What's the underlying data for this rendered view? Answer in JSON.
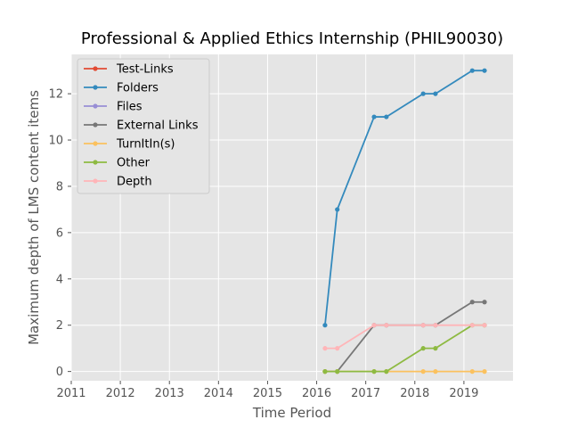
{
  "chart_data": {
    "type": "line",
    "title": "Professional & Applied Ethics Internship (PHIL90030)",
    "xlabel": "Time Period",
    "ylabel": "Maximum depth of LMS content items",
    "xlim": [
      2011,
      2020
    ],
    "ylim": [
      -0.4,
      13.7
    ],
    "x_ticks": [
      "2011",
      "2012",
      "2013",
      "2014",
      "2015",
      "2016",
      "2017",
      "2018",
      "2019"
    ],
    "y_ticks": [
      "0",
      "2",
      "4",
      "6",
      "8",
      "10",
      "12"
    ],
    "grid": true,
    "legend_position": "top-left",
    "x": [
      2016.17,
      2016.42,
      2017.17,
      2017.42,
      2018.17,
      2018.42,
      2019.17,
      2019.42
    ],
    "series": [
      {
        "name": "Test-Links",
        "color": "#E24A33",
        "values": [
          null,
          null,
          null,
          null,
          null,
          null,
          null,
          null
        ]
      },
      {
        "name": "Folders",
        "color": "#348ABD",
        "values": [
          2,
          7,
          11,
          11,
          12,
          12,
          13,
          13
        ]
      },
      {
        "name": "Files",
        "color": "#988ED5",
        "values": [
          null,
          null,
          null,
          null,
          null,
          null,
          null,
          null
        ]
      },
      {
        "name": "External Links",
        "color": "#777777",
        "values": [
          0,
          0,
          2,
          2,
          2,
          2,
          3,
          3
        ]
      },
      {
        "name": "TurnItIn(s)",
        "color": "#FBC15E",
        "values": [
          0,
          0,
          0,
          0,
          0,
          0,
          0,
          0
        ]
      },
      {
        "name": "Other",
        "color": "#8EBA42",
        "values": [
          0,
          0,
          0,
          0,
          1,
          1,
          2,
          2
        ]
      },
      {
        "name": "Depth",
        "color": "#FFB5B8",
        "values": [
          1,
          1,
          2,
          2,
          2,
          2,
          2,
          2
        ]
      }
    ]
  }
}
